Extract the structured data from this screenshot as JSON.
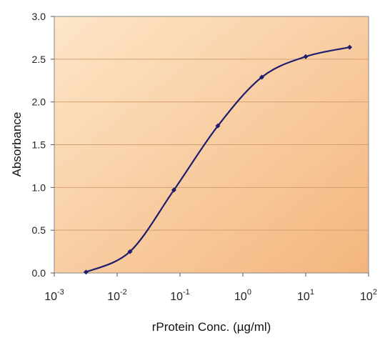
{
  "chart_data": {
    "type": "line",
    "title": "",
    "xlabel": "rProtein Conc. (µg/ml)",
    "ylabel": "Absorbance",
    "x_scale": "log",
    "xlim": [
      0.001,
      100
    ],
    "ylim": [
      0,
      3.0
    ],
    "x_ticks": [
      {
        "base": "10",
        "exp": "-3"
      },
      {
        "base": "10",
        "exp": "-2"
      },
      {
        "base": "10",
        "exp": "-1"
      },
      {
        "base": "10",
        "exp": "0"
      },
      {
        "base": "10",
        "exp": "1"
      },
      {
        "base": "10",
        "exp": "2"
      }
    ],
    "y_ticks": [
      "0.0",
      "0.5",
      "1.0",
      "1.5",
      "2.0",
      "2.5",
      "3.0"
    ],
    "grid": "horizontal",
    "legend": "none",
    "series": [
      {
        "x": [
          0.0032,
          0.016,
          0.08,
          0.4,
          2.0,
          10,
          50
        ],
        "y": [
          0.01,
          0.25,
          0.97,
          1.72,
          2.29,
          2.53,
          2.64
        ]
      }
    ],
    "colors": {
      "line": "#1e1e6e",
      "marker": "#1e1e6e",
      "plot_bg_start": "#fde6c8",
      "plot_bg_end": "#f4b57d",
      "grid": "#d4a070",
      "axis": "#555555"
    }
  }
}
